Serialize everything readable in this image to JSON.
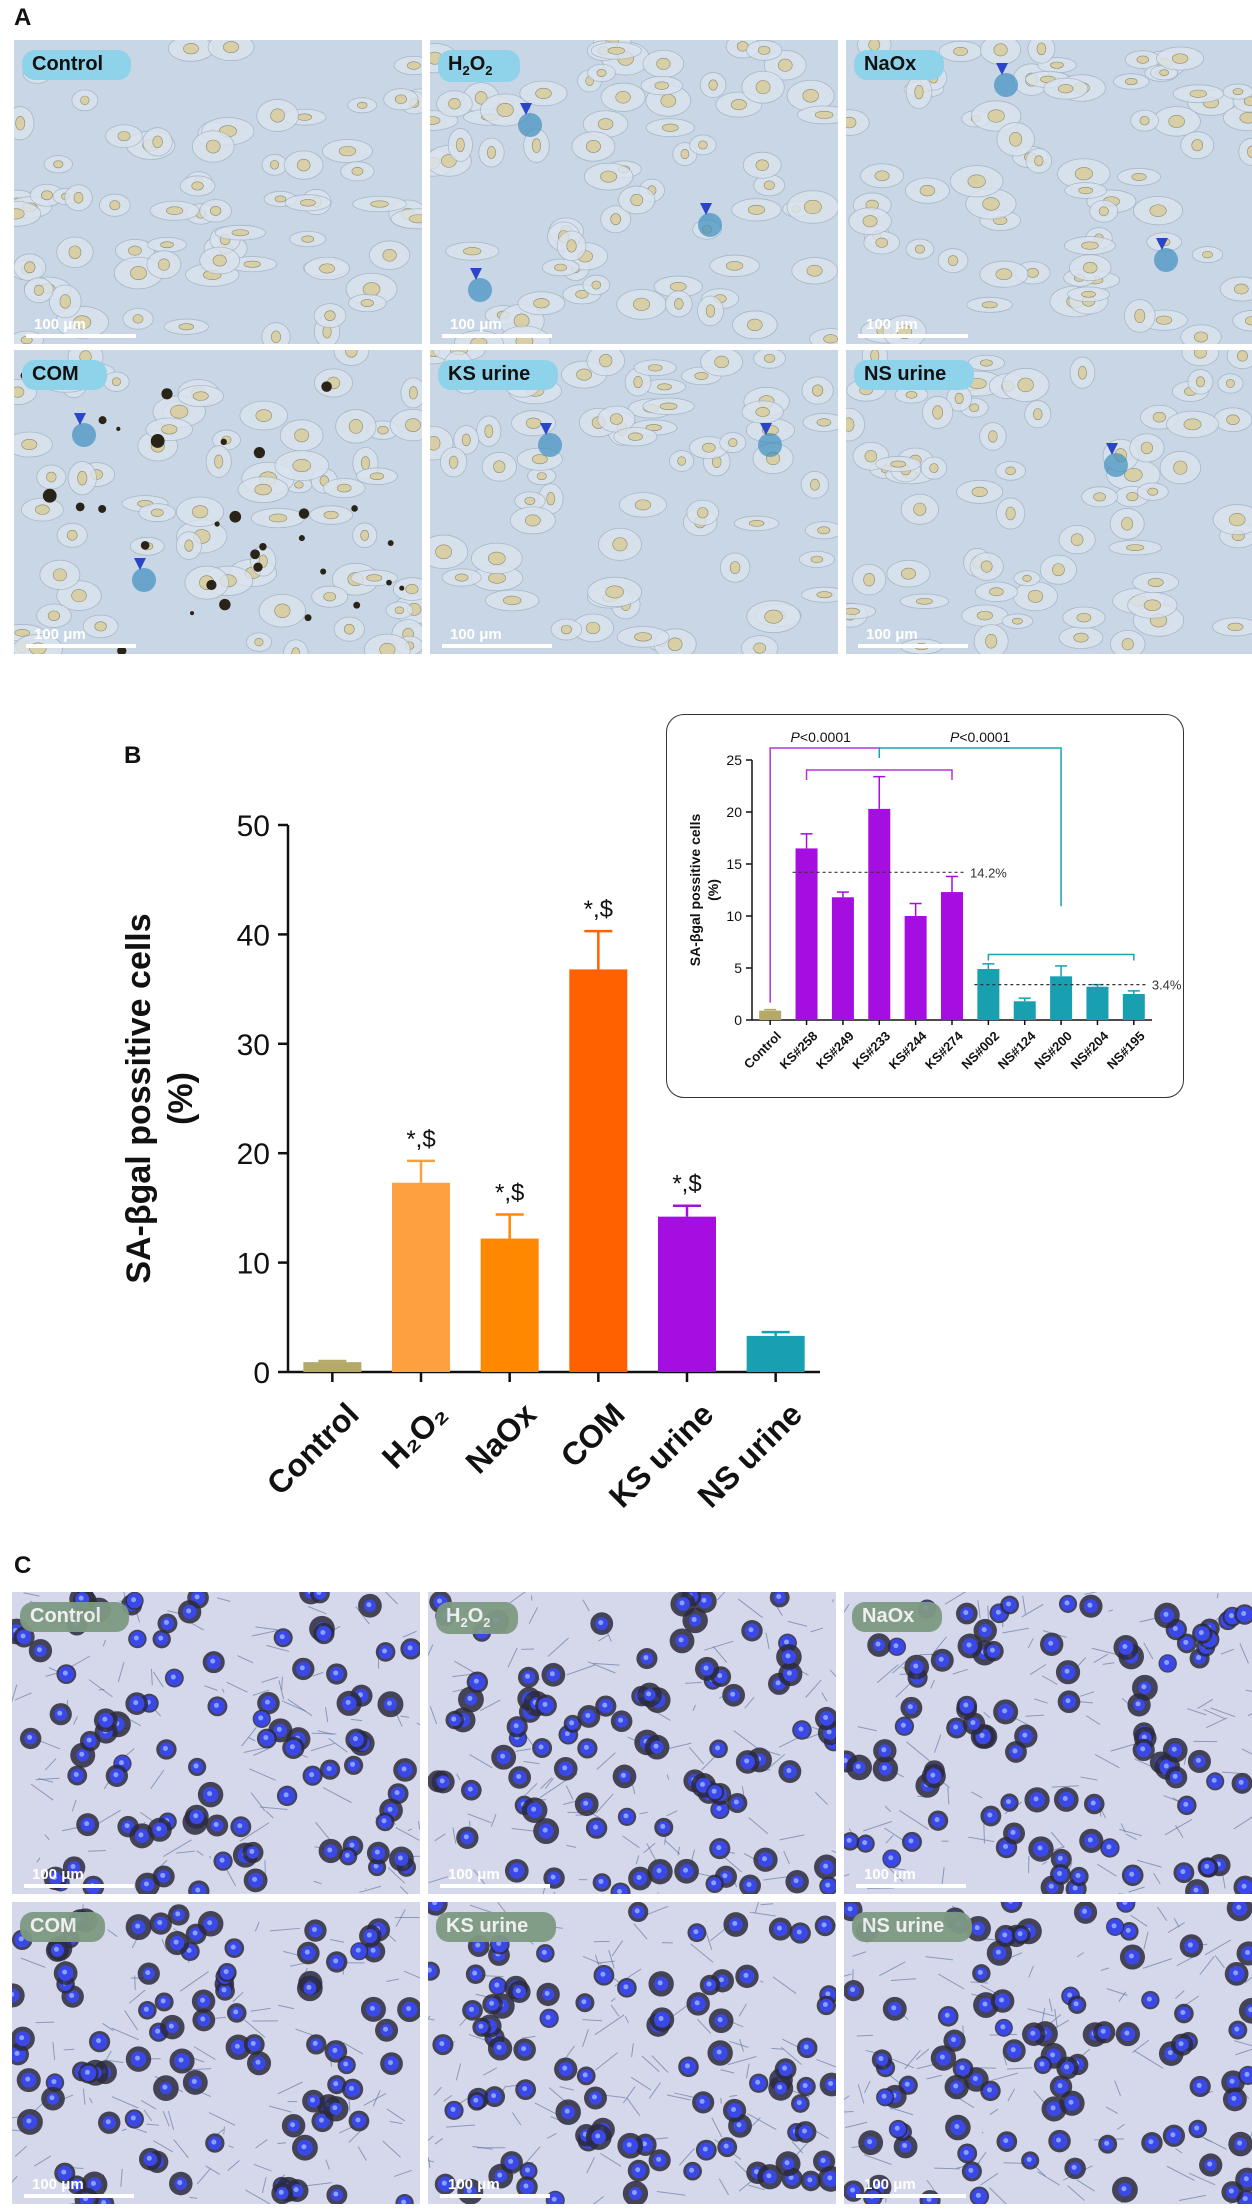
{
  "panels": {
    "a": "A",
    "b": "B",
    "c": "C"
  },
  "scale_bar": "100 μm",
  "panel_a_images": [
    {
      "label": "Control",
      "sub": ""
    },
    {
      "label": "H",
      "sub": "2",
      "label2": "O",
      "sub2": "2"
    },
    {
      "label": "NaOx",
      "sub": ""
    },
    {
      "label": "COM",
      "sub": ""
    },
    {
      "label": "KS urine",
      "sub": ""
    },
    {
      "label": "NS urine",
      "sub": ""
    }
  ],
  "panel_c_images": [
    {
      "label": "Control"
    },
    {
      "label": "H",
      "sub": "2",
      "label2": "O",
      "sub2": "2"
    },
    {
      "label": "NaOx"
    },
    {
      "label": "COM"
    },
    {
      "label": "KS urine"
    },
    {
      "label": "NS urine"
    }
  ],
  "chart_data": [
    {
      "type": "bar",
      "ylabel_line1": "SA-βgal possitive cells",
      "ylabel_line2": "(%)",
      "ylim": [
        0,
        50
      ],
      "yticks": [
        0,
        10,
        20,
        30,
        40,
        50
      ],
      "categories": [
        "Control",
        "H2O2",
        "NaOx",
        "COM",
        "KS urine",
        "NS urine"
      ],
      "category_labels": [
        "Control",
        "H₂O₂",
        "NaOx",
        "COM",
        "KS urine",
        "NS urine"
      ],
      "values": [
        0.9,
        17.3,
        12.2,
        36.8,
        14.2,
        3.3
      ],
      "errors": [
        0.1,
        2.0,
        2.2,
        3.5,
        1.0,
        0.35
      ],
      "colors": [
        "#b5a96a",
        "#ffa040",
        "#ff8800",
        "#ff6000",
        "#a50ee0",
        "#189fb0"
      ],
      "annotations": [
        "",
        "*,$",
        "*,$",
        "*,$",
        "*,$",
        ""
      ]
    },
    {
      "type": "bar",
      "ylabel_line1": "SA-βgal possitive cells",
      "ylabel_line2": "(%)",
      "ylim": [
        0,
        25
      ],
      "yticks": [
        0,
        5,
        10,
        15,
        20,
        25
      ],
      "categories": [
        "Control",
        "KS#258",
        "KS#249",
        "KS#233",
        "KS#244",
        "KS#274",
        "NS#002",
        "NS#124",
        "NS#200",
        "NS#204",
        "NS#195"
      ],
      "values": [
        0.9,
        16.5,
        11.8,
        20.3,
        10.0,
        12.3,
        4.9,
        1.8,
        4.2,
        3.2,
        2.5
      ],
      "errors": [
        0.1,
        1.4,
        0.5,
        3.1,
        1.2,
        1.5,
        0.5,
        0.3,
        1.0,
        0.2,
        0.3
      ],
      "colors": [
        "#b5a96a",
        "#a50ee0",
        "#a50ee0",
        "#a50ee0",
        "#a50ee0",
        "#a50ee0",
        "#189fb0",
        "#189fb0",
        "#189fb0",
        "#189fb0",
        "#189fb0"
      ],
      "ref_lines": [
        {
          "value": 14.2,
          "label": "14.2%"
        },
        {
          "value": 3.4,
          "label": "3.4%"
        }
      ],
      "comparisons": [
        {
          "label_p": "P",
          "label_rest": "<0.0001",
          "color": "#b035d6"
        },
        {
          "label_p": "P",
          "label_rest": "<0.0001",
          "color": "#1aa3b3"
        }
      ]
    }
  ]
}
